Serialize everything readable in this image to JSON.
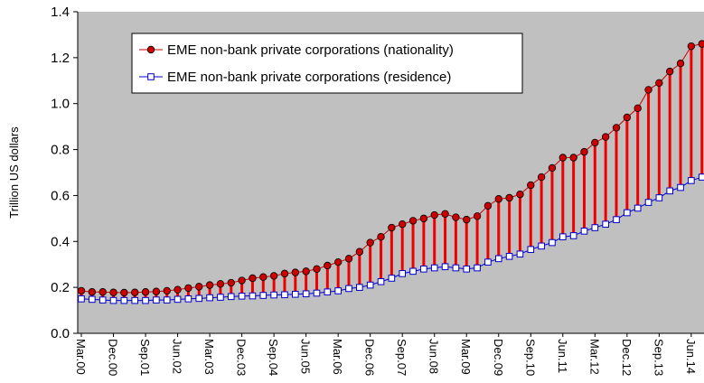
{
  "chart_data": {
    "type": "line",
    "ylabel": "Trillion US dollars",
    "categories": [
      "Mar.00",
      null,
      null,
      "Dec.00",
      null,
      null,
      "Sep.01",
      null,
      null,
      "Jun.02",
      null,
      null,
      "Mar.03",
      null,
      null,
      "Dec.03",
      null,
      null,
      "Sep.04",
      null,
      null,
      "Jun.05",
      null,
      null,
      "Mar.06",
      null,
      null,
      "Dec.06",
      null,
      null,
      "Sep.07",
      null,
      null,
      "Jun.08",
      null,
      null,
      "Mar.09",
      null,
      null,
      "Dec.09",
      null,
      null,
      "Sep.10",
      null,
      null,
      "Jun.11",
      null,
      null,
      "Mar.12",
      null,
      null,
      "Dec.12",
      null,
      null,
      "Sep.13",
      null,
      null,
      "Jun.14",
      null
    ],
    "series": [
      {
        "name": "EME non-bank private corporations (nationality)",
        "color": "#cc0000",
        "marker": "circle",
        "values": [
          0.185,
          0.18,
          0.18,
          0.178,
          0.177,
          0.178,
          0.18,
          0.182,
          0.185,
          0.19,
          0.197,
          0.203,
          0.21,
          0.215,
          0.22,
          0.23,
          0.24,
          0.245,
          0.25,
          0.26,
          0.265,
          0.27,
          0.28,
          0.295,
          0.31,
          0.325,
          0.355,
          0.395,
          0.42,
          0.46,
          0.475,
          0.49,
          0.5,
          0.515,
          0.52,
          0.505,
          0.495,
          0.51,
          0.555,
          0.585,
          0.59,
          0.605,
          0.645,
          0.68,
          0.72,
          0.765,
          0.765,
          0.79,
          0.83,
          0.855,
          0.895,
          0.94,
          0.98,
          1.06,
          1.09,
          1.14,
          1.175,
          1.25,
          1.26
        ]
      },
      {
        "name": "EME non-bank private corporations (residence)",
        "color": "#0000cc",
        "marker": "square",
        "values": [
          0.15,
          0.148,
          0.145,
          0.143,
          0.143,
          0.143,
          0.143,
          0.145,
          0.145,
          0.148,
          0.15,
          0.152,
          0.155,
          0.157,
          0.16,
          0.162,
          0.163,
          0.165,
          0.167,
          0.168,
          0.17,
          0.172,
          0.175,
          0.18,
          0.185,
          0.195,
          0.2,
          0.21,
          0.225,
          0.24,
          0.26,
          0.27,
          0.28,
          0.285,
          0.29,
          0.285,
          0.28,
          0.285,
          0.31,
          0.325,
          0.335,
          0.345,
          0.365,
          0.38,
          0.395,
          0.42,
          0.425,
          0.445,
          0.46,
          0.475,
          0.495,
          0.525,
          0.545,
          0.57,
          0.59,
          0.62,
          0.635,
          0.665,
          0.68
        ]
      }
    ],
    "range_color": "#ee0000",
    "ylim": [
      0,
      1.4
    ],
    "yticks": [
      {
        "value": 0,
        "label": "0.0"
      },
      0.2,
      0.4,
      0.6,
      0.8,
      {
        "value": 1,
        "label": "1.0"
      },
      1.2,
      1.4
    ],
    "plot_background": "#c0c0c0"
  }
}
